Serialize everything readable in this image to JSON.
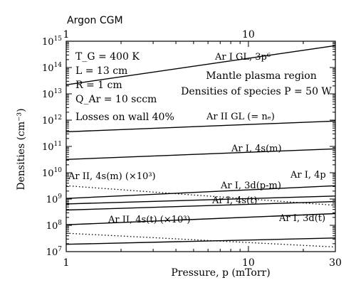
{
  "chart_data": {
    "type": "line",
    "title": "Argon CGM",
    "xlabel": "Pressure, p (mTorr)",
    "ylabel": "Densities (cm⁻³)",
    "xscale": "log",
    "yscale": "log",
    "xlim": [
      1,
      30
    ],
    "ylim": [
      10000000.0,
      1000000000000000.0
    ],
    "x_ticks_bottom": [
      "1",
      "10",
      "30"
    ],
    "x_ticks_top": [
      "1",
      "10"
    ],
    "y_ticks": [
      {
        "base": "10",
        "exp": "7"
      },
      {
        "base": "10",
        "exp": "8"
      },
      {
        "base": "10",
        "exp": "9"
      },
      {
        "base": "10",
        "exp": "10"
      },
      {
        "base": "10",
        "exp": "11"
      },
      {
        "base": "10",
        "exp": "12"
      },
      {
        "base": "10",
        "exp": "13"
      },
      {
        "base": "10",
        "exp": "14"
      },
      {
        "base": "10",
        "exp": "15"
      }
    ],
    "params": [
      "T_G = 400 K",
      "L = 13 cm",
      "R = 1 cm",
      "Q_Ar = 10 sccm",
      "Losses on wall 40%"
    ],
    "region_text": [
      "Mantle plasma region",
      "Densities of species P = 50 W"
    ],
    "series": [
      {
        "label": "Ar I GL, 3p⁶",
        "style": "solid",
        "x": [
          1,
          30
        ],
        "y": [
          22000000000000.0,
          680000000000000.0
        ]
      },
      {
        "label": "Ar II GL (= nₑ)",
        "style": "solid",
        "x": [
          1,
          30
        ],
        "y": [
          360000000000.0,
          920000000000.0
        ]
      },
      {
        "label": "Ar I, 4s(m)",
        "style": "solid",
        "x": [
          1,
          30
        ],
        "y": [
          32000000000.0,
          81000000000.0
        ]
      },
      {
        "label": "Ar I, 4p",
        "style": "solid",
        "x": [
          1,
          30
        ],
        "y": [
          1050000000.0,
          3200000000.0
        ]
      },
      {
        "label": "Ar I, 3d(p-m)",
        "style": "solid",
        "x": [
          1,
          30
        ],
        "y": [
          650000000.0,
          1300000000.0
        ]
      },
      {
        "label": "Ar I, 4s(t)",
        "style": "solid",
        "x": [
          1,
          30
        ],
        "y": [
          380000000.0,
          800000000.0
        ]
      },
      {
        "label": "Ar II, 4s(m) (×10³)",
        "style": "dotted",
        "x": [
          1,
          30
        ],
        "y": [
          3200000000.0,
          580000000.0
        ]
      },
      {
        "label": "Ar I, 3d(t)",
        "style": "solid",
        "x": [
          1,
          30
        ],
        "y": [
          105000000.0,
          280000000.0
        ]
      },
      {
        "label": "Ar II, 4s(t) (×10³)",
        "style": "dotted",
        "x": [
          1,
          30
        ],
        "y": [
          50000000.0,
          15000000.0
        ]
      },
      {
        "label": "",
        "style": "solid",
        "x": [
          1,
          30
        ],
        "y": [
          19000000.0,
          33000000.0
        ]
      }
    ]
  }
}
